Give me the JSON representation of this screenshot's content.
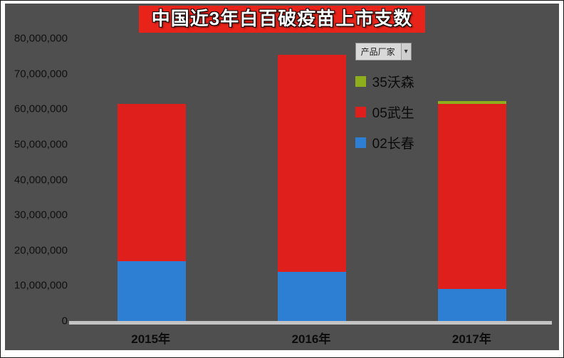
{
  "title": "中国近3年白百破疫苗上市支数",
  "legend": {
    "dropdown_label": "产品厂家",
    "dropdown_arrow": "▾",
    "items": [
      {
        "label": "35沃森",
        "color": "#8fae1b"
      },
      {
        "label": "05武生",
        "color": "#df1f1c"
      },
      {
        "label": "02长春",
        "color": "#2d7fd3"
      }
    ]
  },
  "chart_data": {
    "type": "bar",
    "stacked": true,
    "title": "中国近3年白百破疫苗上市支数",
    "categories": [
      "2015年",
      "2016年",
      "2017年"
    ],
    "series": [
      {
        "name": "02长春",
        "color": "#2d7fd3",
        "values": [
          17000000,
          14000000,
          9000000
        ]
      },
      {
        "name": "05武生",
        "color": "#df1f1c",
        "values": [
          44500000,
          61500000,
          52500000
        ]
      },
      {
        "name": "35沃森",
        "color": "#8fae1b",
        "values": [
          0,
          0,
          700000
        ]
      }
    ],
    "totals": [
      61500000,
      75500000,
      62200000
    ],
    "xlabel": "",
    "ylabel": "",
    "ylim": [
      0,
      80000000
    ],
    "ytick_interval": 10000000,
    "ytick_labels_top_to_bottom": [
      "80,000,000",
      "70,000,000",
      "60,000,000",
      "50,000,000",
      "40,000,000",
      "30,000,000",
      "20,000,000",
      "10,000,000",
      "0"
    ],
    "grid": false,
    "legend_position": "top-right"
  },
  "colors": {
    "chart_background": "#4f4f4f",
    "title_background": "#e8241a",
    "title_text": "#ffffff",
    "axis_baseline": "#c4c4c4",
    "tick_text": "#101010"
  }
}
